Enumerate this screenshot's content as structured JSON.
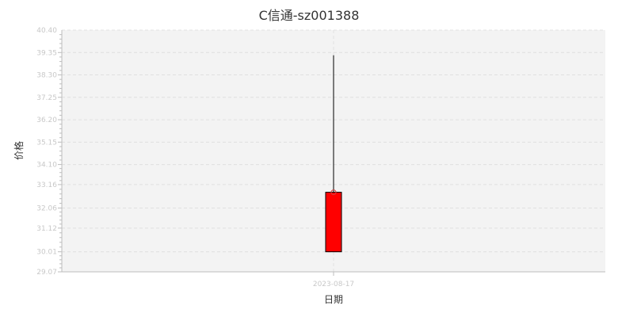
{
  "chart_data": {
    "type": "candlestick",
    "title": "C信通-sz001388",
    "xlabel": "日期",
    "ylabel": "价格",
    "categories": [
      "2023-08-17"
    ],
    "candles": [
      {
        "date": "2023-08-17",
        "open": 30.01,
        "close": 32.8,
        "low": 30.01,
        "high": 39.22
      }
    ],
    "y_ticks": [
      29.07,
      30.01,
      31.12,
      32.06,
      33.16,
      34.1,
      35.15,
      36.2,
      37.25,
      38.3,
      39.35,
      40.4
    ],
    "ylim": [
      29.07,
      40.4
    ],
    "grid": true,
    "colors": {
      "up": "#ff0000",
      "outline": "#000000",
      "plot_bg": "#f3f3f3",
      "grid": "#e0e0e0"
    }
  }
}
